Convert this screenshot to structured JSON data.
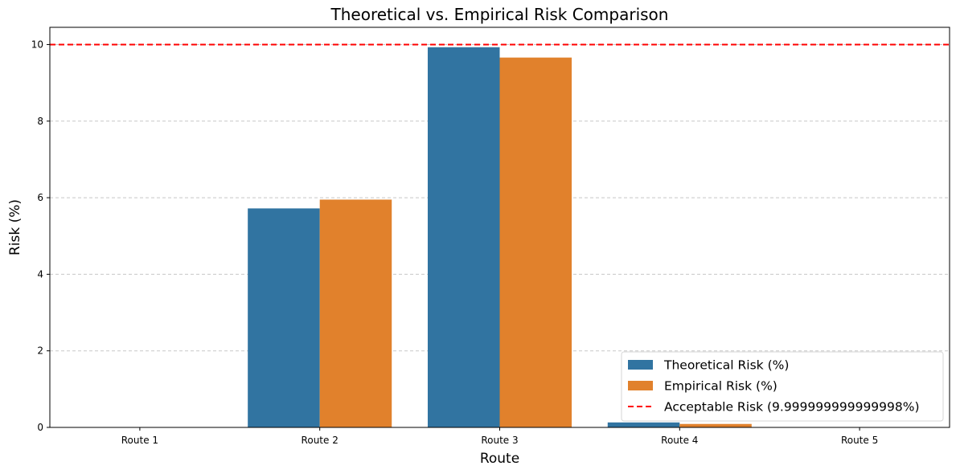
{
  "chart_data": {
    "type": "bar",
    "title": "Theoretical vs. Empirical Risk Comparison",
    "xlabel": "Route",
    "ylabel": "Risk (%)",
    "categories": [
      "Route 1",
      "Route 2",
      "Route 3",
      "Route 4",
      "Route 5"
    ],
    "series": [
      {
        "name": "Theoretical Risk (%)",
        "color": "#3174a1",
        "values": [
          0.0,
          5.72,
          9.93,
          0.13,
          0.0
        ]
      },
      {
        "name": "Empirical Risk (%)",
        "color": "#e1812c",
        "values": [
          0.0,
          5.95,
          9.66,
          0.09,
          0.0
        ]
      }
    ],
    "reference_line": {
      "name": "Acceptable Risk (9.999999999999998%)",
      "value": 10.0,
      "color": "#ff0000",
      "style": "dashed"
    },
    "ylim": [
      0,
      10.45
    ],
    "yticks": [
      0,
      2,
      4,
      6,
      8,
      10
    ],
    "grid": "y-dashed",
    "legend_position": "lower-right"
  }
}
